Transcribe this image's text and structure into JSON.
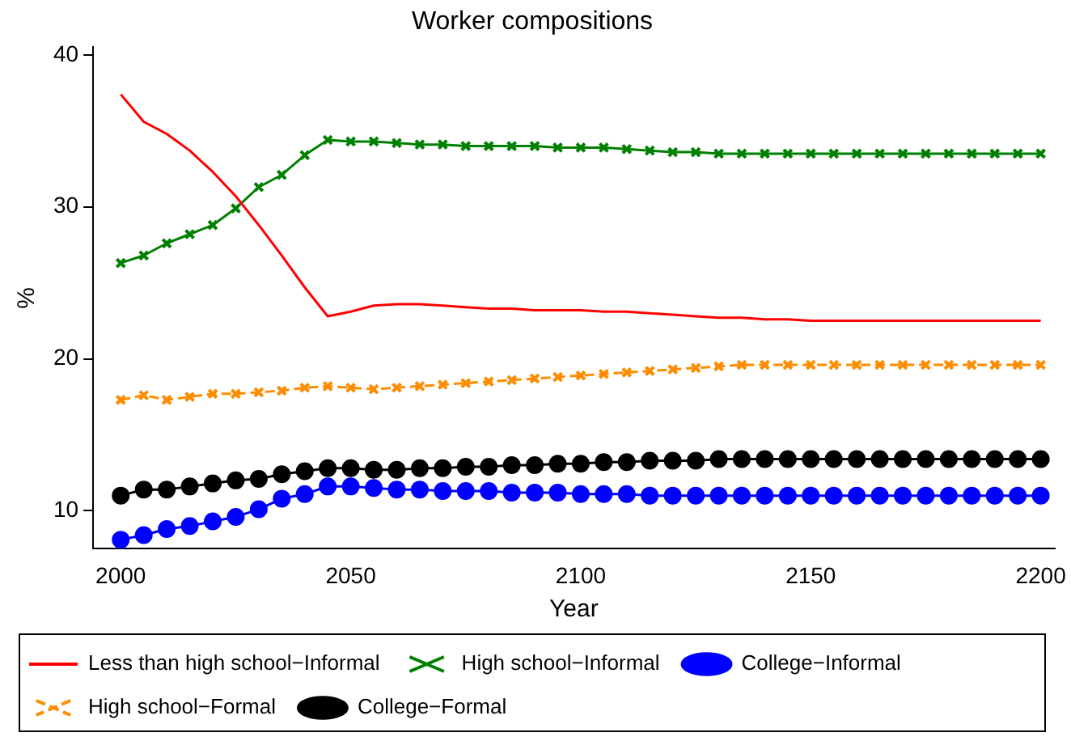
{
  "chart_data": {
    "type": "line",
    "title": "Worker compositions",
    "xlabel": "Year",
    "ylabel": "%",
    "x": [
      2000,
      2005,
      2010,
      2015,
      2020,
      2025,
      2030,
      2035,
      2040,
      2045,
      2050,
      2055,
      2060,
      2065,
      2070,
      2075,
      2080,
      2085,
      2090,
      2095,
      2100,
      2105,
      2110,
      2115,
      2120,
      2125,
      2130,
      2135,
      2140,
      2145,
      2150,
      2155,
      2160,
      2165,
      2170,
      2175,
      2180,
      2185,
      2190,
      2195,
      2200
    ],
    "xlim": [
      1994,
      2203
    ],
    "xticks": [
      2000,
      2050,
      2100,
      2150,
      2200
    ],
    "ylim": [
      7.5,
      40.5
    ],
    "yticks": [
      10,
      20,
      30,
      40
    ],
    "grid": false,
    "legend": "bottom",
    "series": [
      {
        "name": "Less than high school−Informal",
        "color": "#ff0000",
        "marker": "none",
        "line_style": "solid",
        "values": [
          37.4,
          35.6,
          34.8,
          33.7,
          32.3,
          30.7,
          28.8,
          26.8,
          24.7,
          22.8,
          23.1,
          23.5,
          23.6,
          23.6,
          23.5,
          23.4,
          23.3,
          23.3,
          23.2,
          23.2,
          23.2,
          23.1,
          23.1,
          23.0,
          22.9,
          22.8,
          22.7,
          22.7,
          22.6,
          22.6,
          22.5,
          22.5,
          22.5,
          22.5,
          22.5,
          22.5,
          22.5,
          22.5,
          22.5,
          22.5,
          22.5
        ]
      },
      {
        "name": "High school−Informal",
        "color": "#008000",
        "marker": "cross",
        "line_style": "solid",
        "values": [
          26.3,
          26.8,
          27.6,
          28.2,
          28.8,
          29.9,
          31.3,
          32.1,
          33.4,
          34.4,
          34.3,
          34.3,
          34.2,
          34.1,
          34.1,
          34.0,
          34.0,
          34.0,
          34.0,
          33.9,
          33.9,
          33.9,
          33.8,
          33.7,
          33.6,
          33.6,
          33.5,
          33.5,
          33.5,
          33.5,
          33.5,
          33.5,
          33.5,
          33.5,
          33.5,
          33.5,
          33.5,
          33.5,
          33.5,
          33.5,
          33.5
        ]
      },
      {
        "name": "College−Informal",
        "color": "#0000ff",
        "marker": "circle",
        "line_style": "solid",
        "values": [
          8.1,
          8.4,
          8.8,
          9.0,
          9.3,
          9.6,
          10.1,
          10.8,
          11.1,
          11.6,
          11.6,
          11.5,
          11.4,
          11.4,
          11.3,
          11.3,
          11.3,
          11.2,
          11.2,
          11.2,
          11.1,
          11.1,
          11.1,
          11.0,
          11.0,
          11.0,
          11.0,
          11.0,
          11.0,
          11.0,
          11.0,
          11.0,
          11.0,
          11.0,
          11.0,
          11.0,
          11.0,
          11.0,
          11.0,
          11.0,
          11.0
        ]
      },
      {
        "name": "High school−Formal",
        "color": "#ff8c00",
        "marker": "cross",
        "line_style": "dashed",
        "values": [
          17.3,
          17.6,
          17.3,
          17.5,
          17.7,
          17.7,
          17.8,
          17.9,
          18.1,
          18.2,
          18.1,
          18.0,
          18.1,
          18.2,
          18.3,
          18.4,
          18.5,
          18.6,
          18.7,
          18.8,
          18.9,
          19.0,
          19.1,
          19.2,
          19.3,
          19.4,
          19.5,
          19.6,
          19.6,
          19.6,
          19.6,
          19.6,
          19.6,
          19.6,
          19.6,
          19.6,
          19.6,
          19.6,
          19.6,
          19.6,
          19.6
        ]
      },
      {
        "name": "College−Formal",
        "color": "#000000",
        "marker": "circle",
        "line_style": "solid",
        "values": [
          11.0,
          11.4,
          11.4,
          11.6,
          11.8,
          12.0,
          12.1,
          12.4,
          12.6,
          12.8,
          12.8,
          12.7,
          12.7,
          12.8,
          12.8,
          12.9,
          12.9,
          13.0,
          13.0,
          13.1,
          13.1,
          13.2,
          13.2,
          13.3,
          13.3,
          13.3,
          13.4,
          13.4,
          13.4,
          13.4,
          13.4,
          13.4,
          13.4,
          13.4,
          13.4,
          13.4,
          13.4,
          13.4,
          13.4,
          13.4,
          13.4
        ]
      }
    ]
  }
}
